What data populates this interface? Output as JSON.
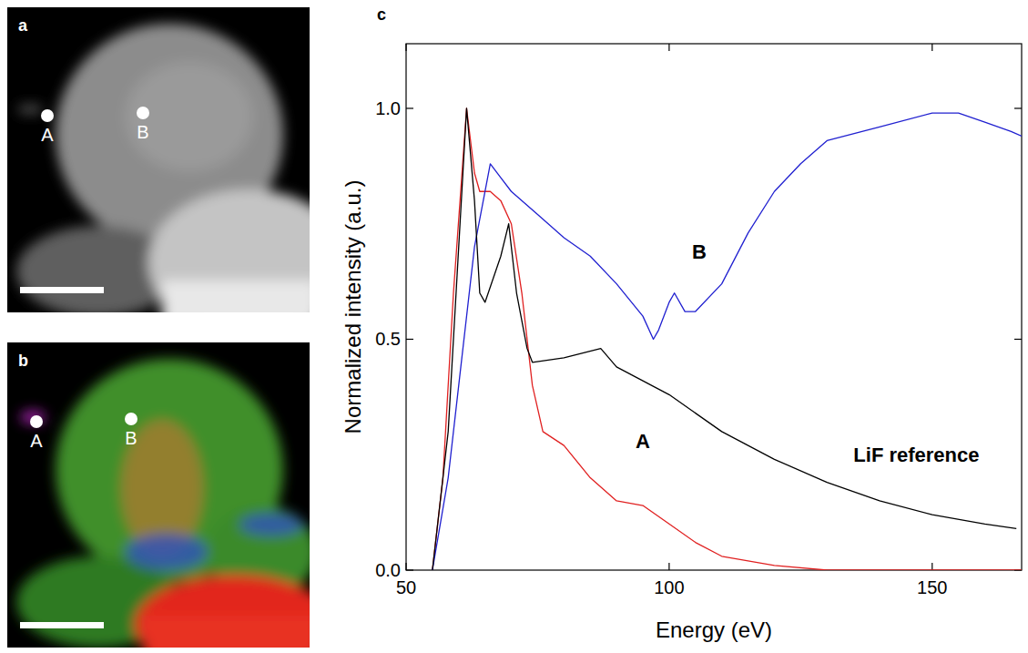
{
  "images": [
    {
      "label": "a",
      "points": [
        "A",
        "B"
      ]
    },
    {
      "label": "b",
      "points": [
        "A",
        "B"
      ]
    }
  ],
  "chart_data": {
    "type": "line",
    "panel_label": "c",
    "x_label": "Energy (eV)",
    "y_label": "Normalized intensity (a.u.)",
    "xlim": [
      50,
      167
    ],
    "ylim": [
      0,
      1.14
    ],
    "xticks": [
      50,
      100,
      150
    ],
    "yticks": [
      {
        "value": 0,
        "label": "0.0"
      },
      {
        "value": 0.5,
        "label": "0.5"
      },
      {
        "value": 1,
        "label": "1.0"
      }
    ],
    "grid": false,
    "series": [
      {
        "name": "A",
        "color": "#e02020",
        "label_x": 95,
        "label_y": 0.28,
        "x": [
          55,
          57,
          59,
          61.5,
          63,
          64,
          66,
          68,
          70,
          72,
          74,
          76,
          80,
          85,
          90,
          95,
          100,
          105,
          110,
          120,
          130,
          167
        ],
        "values": [
          0,
          0.2,
          0.6,
          1.0,
          0.86,
          0.82,
          0.82,
          0.8,
          0.75,
          0.6,
          0.4,
          0.3,
          0.27,
          0.2,
          0.15,
          0.14,
          0.1,
          0.06,
          0.03,
          0.01,
          0,
          0
        ]
      },
      {
        "name": "B",
        "color": "#2020d0",
        "label_x": 105.7,
        "label_y": 0.69,
        "x": [
          55,
          58,
          60,
          63,
          66,
          68,
          70,
          75,
          80,
          85,
          90,
          95,
          97,
          98,
          100,
          101,
          103,
          105,
          110,
          115,
          120,
          125,
          130,
          140,
          150,
          155,
          160,
          165,
          167
        ],
        "values": [
          0,
          0.2,
          0.4,
          0.7,
          0.88,
          0.85,
          0.82,
          0.77,
          0.72,
          0.68,
          0.62,
          0.55,
          0.5,
          0.52,
          0.58,
          0.6,
          0.56,
          0.56,
          0.62,
          0.73,
          0.82,
          0.88,
          0.93,
          0.96,
          0.99,
          0.99,
          0.97,
          0.95,
          0.94
        ]
      },
      {
        "name": "LiF reference",
        "color": "#000000",
        "label_x": 147,
        "label_y": 0.25,
        "x": [
          55,
          58,
          61.5,
          63,
          64,
          65,
          68,
          69.5,
          71,
          73,
          74,
          80,
          87,
          90,
          100,
          110,
          120,
          130,
          140,
          150,
          160,
          166
        ],
        "values": [
          0,
          0.3,
          1.0,
          0.8,
          0.6,
          0.58,
          0.68,
          0.75,
          0.6,
          0.48,
          0.45,
          0.46,
          0.48,
          0.44,
          0.38,
          0.3,
          0.24,
          0.19,
          0.15,
          0.12,
          0.1,
          0.09
        ]
      }
    ]
  }
}
